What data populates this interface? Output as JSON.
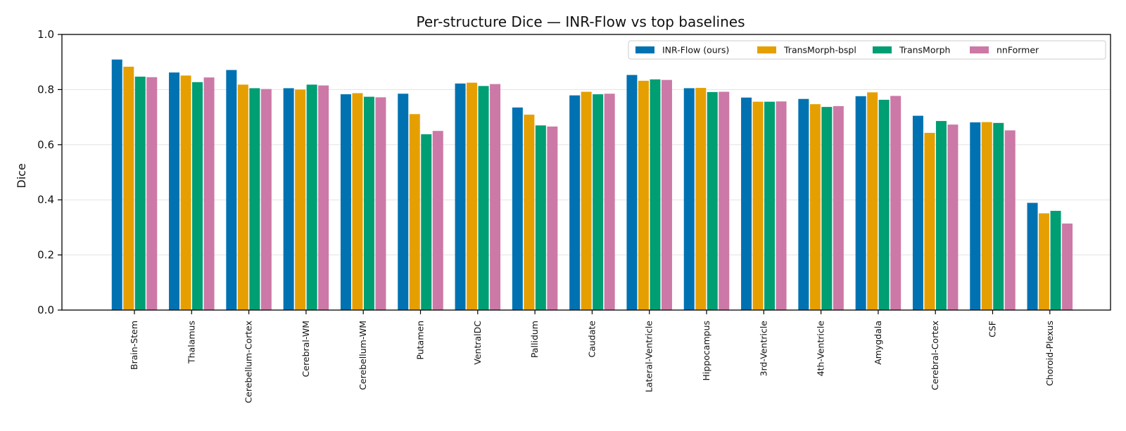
{
  "chart_data": {
    "type": "bar",
    "title": "Per-structure Dice — INR-Flow vs top baselines",
    "xlabel": "",
    "ylabel": "Dice",
    "ylim": [
      0,
      1.0
    ],
    "yticks": [
      "0.0",
      "0.2",
      "0.4",
      "0.6",
      "0.8",
      "1.0"
    ],
    "grid": "horizontal",
    "legend_position": "top-right",
    "categories": [
      "Brain-Stem",
      "Thalamus",
      "Cerebellum-Cortex",
      "Cerebral-WM",
      "Cerebellum-WM",
      "Putamen",
      "VentralDC",
      "Pallidum",
      "Caudate",
      "Lateral-Ventricle",
      "Hippocampus",
      "3rd-Ventricle",
      "4th-Ventricle",
      "Amygdala",
      "Cerebral-Cortex",
      "CSF",
      "Choroid-Plexus"
    ],
    "series": [
      {
        "name": "INR-Flow (ours)",
        "color": "#0072b2",
        "values": [
          0.909,
          0.862,
          0.871,
          0.805,
          0.783,
          0.785,
          0.822,
          0.735,
          0.779,
          0.853,
          0.805,
          0.771,
          0.766,
          0.776,
          0.705,
          0.681,
          0.389
        ]
      },
      {
        "name": "TransMorph-bspl",
        "color": "#e69f00",
        "values": [
          0.883,
          0.851,
          0.818,
          0.8,
          0.787,
          0.711,
          0.825,
          0.709,
          0.792,
          0.832,
          0.806,
          0.756,
          0.747,
          0.79,
          0.643,
          0.682,
          0.351
        ]
      },
      {
        "name": "TransMorph",
        "color": "#009e73",
        "values": [
          0.847,
          0.827,
          0.805,
          0.818,
          0.774,
          0.638,
          0.813,
          0.67,
          0.783,
          0.837,
          0.791,
          0.756,
          0.737,
          0.763,
          0.686,
          0.679,
          0.36
        ]
      },
      {
        "name": "nnFormer",
        "color": "#cc79a7",
        "values": [
          0.845,
          0.844,
          0.802,
          0.815,
          0.772,
          0.65,
          0.82,
          0.666,
          0.785,
          0.835,
          0.792,
          0.757,
          0.74,
          0.777,
          0.673,
          0.652,
          0.314
        ]
      }
    ]
  }
}
